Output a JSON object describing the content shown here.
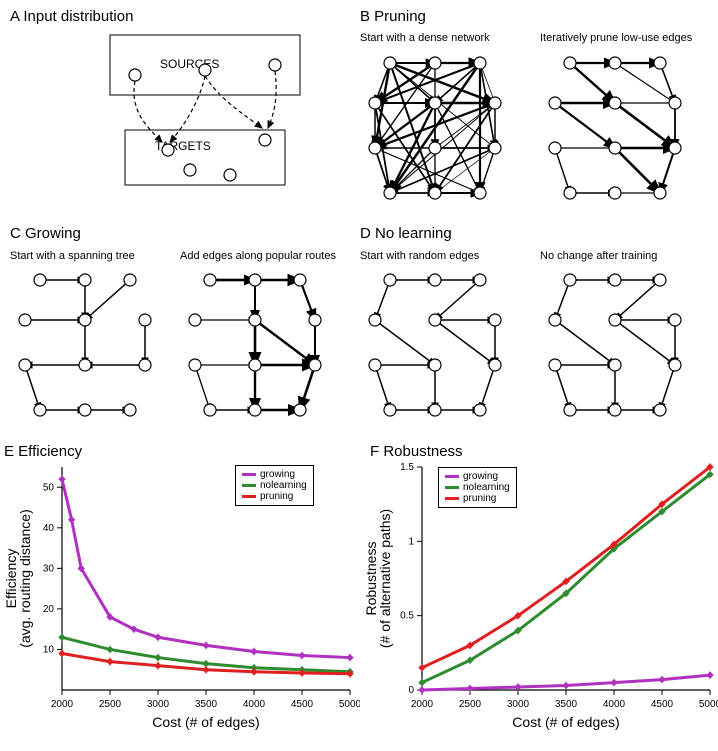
{
  "panelA": {
    "title": "A  Input distribution",
    "sources_label": "SOURCES",
    "targets_label": "TARGETS",
    "title_fontsize": 15
  },
  "panelB": {
    "title": "B  Pruning",
    "sub_left": "Start with a dense network",
    "sub_right": "Iteratively prune low-use edges",
    "title_fontsize": 15,
    "sub_fontsize": 11
  },
  "panelC": {
    "title": "C  Growing",
    "sub_left": "Start with a spanning tree",
    "sub_right": "Add edges along popular routes",
    "title_fontsize": 15
  },
  "panelD": {
    "title": "D  No learning",
    "sub_left": "Start with random edges",
    "sub_right": "No change after training",
    "title_fontsize": 15
  },
  "panelE": {
    "title": "E  Efficiency",
    "type": "line",
    "xlabel": "Cost (# of edges)",
    "ylabel": "Efficiency\n(avg. routing distance)",
    "xlim": [
      2000,
      5000
    ],
    "ylim": [
      0,
      55
    ],
    "xticks": [
      2000,
      2500,
      3000,
      3500,
      4000,
      4500,
      5000
    ],
    "yticks": [
      10,
      20,
      30,
      40,
      50
    ],
    "label_fontsize": 14,
    "tick_fontsize": 10,
    "background_color": "#ffffff",
    "legend_items": [
      {
        "label": "growing",
        "color": "#b030c0"
      },
      {
        "label": "nolearning",
        "color": "#2e8b2e"
      },
      {
        "label": "pruning",
        "color": "#e02020"
      }
    ],
    "series": {
      "growing": {
        "color": "#b030c0",
        "stroke_width": 3,
        "marker": "diamond",
        "x": [
          2000,
          2100,
          2200,
          2500,
          2750,
          3000,
          3500,
          4000,
          4500,
          5000
        ],
        "y": [
          52,
          42,
          30,
          18,
          15,
          13,
          11,
          9.5,
          8.5,
          8
        ]
      },
      "nolearning": {
        "color": "#2e8b2e",
        "stroke_width": 3,
        "marker": "diamond",
        "x": [
          2000,
          2500,
          3000,
          3500,
          4000,
          4500,
          5000
        ],
        "y": [
          13,
          10,
          8,
          6.5,
          5.5,
          5,
          4.5
        ]
      },
      "pruning": {
        "color": "#e02020",
        "stroke_width": 3,
        "marker": "diamond",
        "x": [
          2000,
          2500,
          3000,
          3500,
          4000,
          4500,
          5000
        ],
        "y": [
          9,
          7,
          6,
          5,
          4.5,
          4.2,
          4
        ]
      }
    }
  },
  "panelF": {
    "title": "F  Robustness",
    "type": "line",
    "xlabel": "Cost (# of edges)",
    "ylabel": "Robustness\n(# of alternative paths)",
    "xlim": [
      2000,
      5000
    ],
    "ylim": [
      0,
      1.5
    ],
    "xticks": [
      2000,
      2500,
      3000,
      3500,
      4000,
      4500,
      5000
    ],
    "yticks": [
      0,
      0.5,
      1.0,
      1.5
    ],
    "label_fontsize": 14,
    "tick_fontsize": 10,
    "background_color": "#ffffff",
    "legend_items": [
      {
        "label": "growing",
        "color": "#b030c0"
      },
      {
        "label": "nolearning",
        "color": "#2e8b2e"
      },
      {
        "label": "pruning",
        "color": "#e02020"
      }
    ],
    "series": {
      "growing": {
        "color": "#b030c0",
        "stroke_width": 3,
        "marker": "diamond",
        "x": [
          2000,
          2500,
          3000,
          3500,
          4000,
          4500,
          5000
        ],
        "y": [
          0.0,
          0.01,
          0.02,
          0.03,
          0.05,
          0.07,
          0.1
        ]
      },
      "nolearning": {
        "color": "#2e8b2e",
        "stroke_width": 3,
        "marker": "diamond",
        "x": [
          2000,
          2500,
          3000,
          3500,
          4000,
          4500,
          5000
        ],
        "y": [
          0.05,
          0.2,
          0.4,
          0.65,
          0.95,
          1.2,
          1.45
        ]
      },
      "pruning": {
        "color": "#e02020",
        "stroke_width": 3,
        "marker": "diamond",
        "x": [
          2000,
          2500,
          3000,
          3500,
          4000,
          4500,
          5000
        ],
        "y": [
          0.15,
          0.3,
          0.5,
          0.73,
          0.98,
          1.25,
          1.5
        ]
      }
    }
  },
  "node_radius": 6,
  "edge_color": "#000000",
  "node_fill": "#ffffff",
  "node_stroke": "#000000"
}
